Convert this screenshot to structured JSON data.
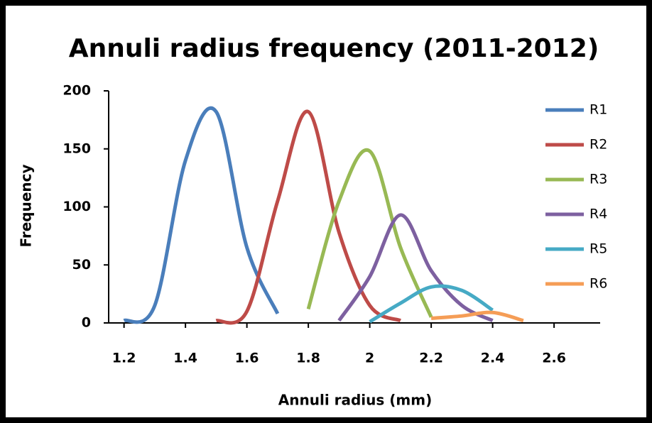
{
  "chart_data": {
    "type": "line",
    "title": "Annuli radius frequency (2011-2012)",
    "x_label": "Annuli radius (mm)",
    "y_label": "Frequency",
    "xlim": [
      1.15,
      2.75
    ],
    "xticks": [
      1.2,
      1.4,
      1.6,
      1.8,
      2,
      2.2,
      2.4,
      2.6
    ],
    "ylim": [
      0,
      200
    ],
    "yticks": [
      0,
      50,
      100,
      150,
      200
    ],
    "smooth": true,
    "legend": "right",
    "series": [
      {
        "name": "R1",
        "color": "#4a7ebb",
        "x": [
          1.2,
          1.3,
          1.4,
          1.5,
          1.6,
          1.7
        ],
        "values": [
          2,
          15,
          140,
          182,
          65,
          8
        ]
      },
      {
        "name": "R2",
        "color": "#be4b48",
        "x": [
          1.5,
          1.6,
          1.7,
          1.8,
          1.9,
          2.0,
          2.1
        ],
        "values": [
          2,
          10,
          105,
          182,
          78,
          15,
          2
        ]
      },
      {
        "name": "R3",
        "color": "#98b954",
        "x": [
          1.8,
          1.9,
          2.0,
          2.1,
          2.2
        ],
        "values": [
          12,
          105,
          148,
          65,
          5
        ]
      },
      {
        "name": "R4",
        "color": "#7d60a0",
        "x": [
          1.9,
          2.0,
          2.1,
          2.2,
          2.3,
          2.4
        ],
        "values": [
          2,
          40,
          93,
          45,
          15,
          2
        ]
      },
      {
        "name": "R5",
        "color": "#46aac5",
        "x": [
          2.0,
          2.1,
          2.2,
          2.3,
          2.4
        ],
        "values": [
          1,
          17,
          31,
          28,
          11
        ]
      },
      {
        "name": "R6",
        "color": "#f59d56",
        "x": [
          2.2,
          2.3,
          2.4,
          2.5
        ],
        "values": [
          4,
          6,
          9,
          2
        ]
      }
    ]
  }
}
